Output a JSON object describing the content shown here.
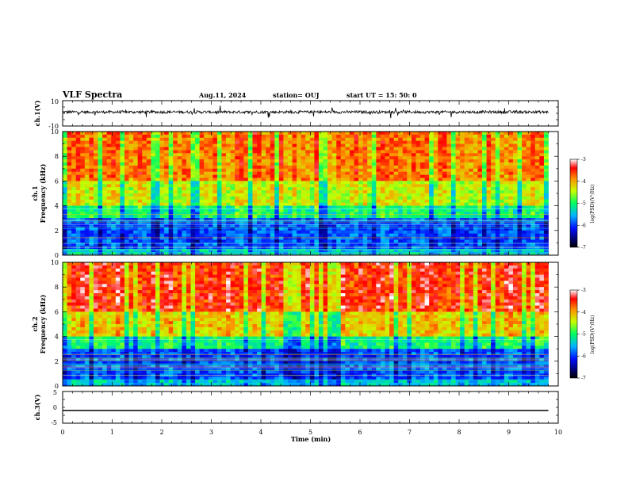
{
  "header": {
    "title": "VLF Spectra",
    "date": "Aug.11, 2024",
    "station": "station= OUJ",
    "start": "start  UT =   15: 50: 0"
  },
  "colors": {
    "trace": "#000000",
    "colormap": [
      "#000080",
      "#0000ff",
      "#00c8ff",
      "#00ff80",
      "#c8ff00",
      "#ffa000",
      "#ff0000",
      "#ffffff"
    ]
  },
  "chart_data": [
    {
      "type": "line",
      "ylabel": "ch.1(V)",
      "ylim": [
        -10,
        10
      ],
      "y_ticks": [
        "10",
        "-10"
      ],
      "x": [
        0,
        1,
        2,
        3,
        4,
        5,
        6,
        7,
        8,
        9,
        9.8
      ],
      "values": [
        1,
        1,
        1,
        1,
        1,
        1,
        1,
        1,
        1,
        1,
        1
      ]
    },
    {
      "type": "heatmap",
      "ylabel": "ch.1\nFrequency (kHz)",
      "ylim": [
        0,
        10
      ],
      "y_ticks": [
        "0",
        "2",
        "4",
        "6",
        "8",
        "10"
      ],
      "colorbar": {
        "label": "log(PSD)(V²/Hz)",
        "range": [
          -7,
          -3
        ],
        "ticks": [
          "-3",
          "-4",
          "-5",
          "-6",
          "-7"
        ]
      }
    },
    {
      "type": "heatmap",
      "ylabel": "ch.2\nFrequency (kHz)",
      "ylim": [
        0,
        10
      ],
      "y_ticks": [
        "0",
        "2",
        "4",
        "6",
        "8",
        "10"
      ],
      "colorbar": {
        "label": "log(PSD)(V²/Hz)",
        "range": [
          -7,
          -3
        ],
        "ticks": [
          "-3",
          "-4",
          "-5",
          "-6",
          "-7"
        ]
      }
    },
    {
      "type": "line",
      "ylabel": "ch.3(V)",
      "ylim": [
        -5,
        5
      ],
      "y_ticks": [
        "5",
        "0",
        "-5"
      ],
      "x": [
        0,
        9.8
      ],
      "values": [
        -1,
        -1
      ]
    }
  ],
  "x_axis": {
    "label": "Time (min)",
    "range": [
      0,
      10
    ],
    "ticks": [
      "0",
      "1",
      "2",
      "3",
      "4",
      "5",
      "6",
      "7",
      "8",
      "9",
      "10"
    ]
  }
}
